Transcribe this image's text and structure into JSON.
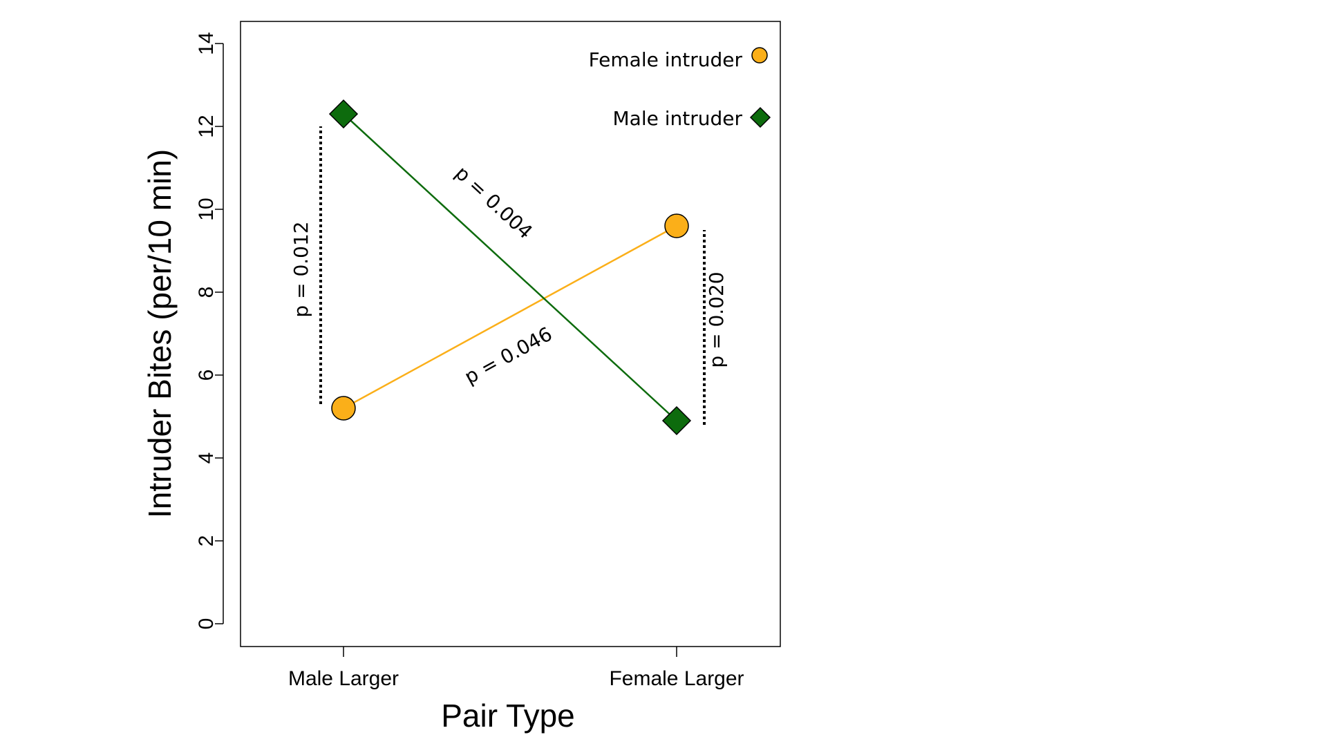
{
  "chart_data": {
    "type": "line",
    "categories": [
      "Male Larger",
      "Female Larger"
    ],
    "xlabel": "Pair Type",
    "ylabel": "Intruder Bites (per/10 min)",
    "ylim": [
      0,
      14
    ],
    "yticks": [
      "0",
      "2",
      "4",
      "6",
      "8",
      "10",
      "12",
      "14"
    ],
    "grid": false,
    "legend_position": "top-right",
    "series": [
      {
        "name": "Female intruder",
        "marker": "circle",
        "color": "#FBAF19",
        "values": [
          5.2,
          9.6
        ]
      },
      {
        "name": "Male intruder",
        "marker": "diamond",
        "color": "#0D6B0D",
        "values": [
          12.3,
          4.9
        ]
      }
    ],
    "annotations": {
      "male_larger_comparison": {
        "text": "p = 0.012",
        "from": 5.3,
        "to": 12.0
      },
      "female_larger_comparison": {
        "text": "p = 0.020",
        "from": 4.8,
        "to": 9.5
      },
      "male_intruder_trend": {
        "text": "p = 0.004"
      },
      "female_intruder_trend": {
        "text": "p = 0.046"
      }
    }
  }
}
